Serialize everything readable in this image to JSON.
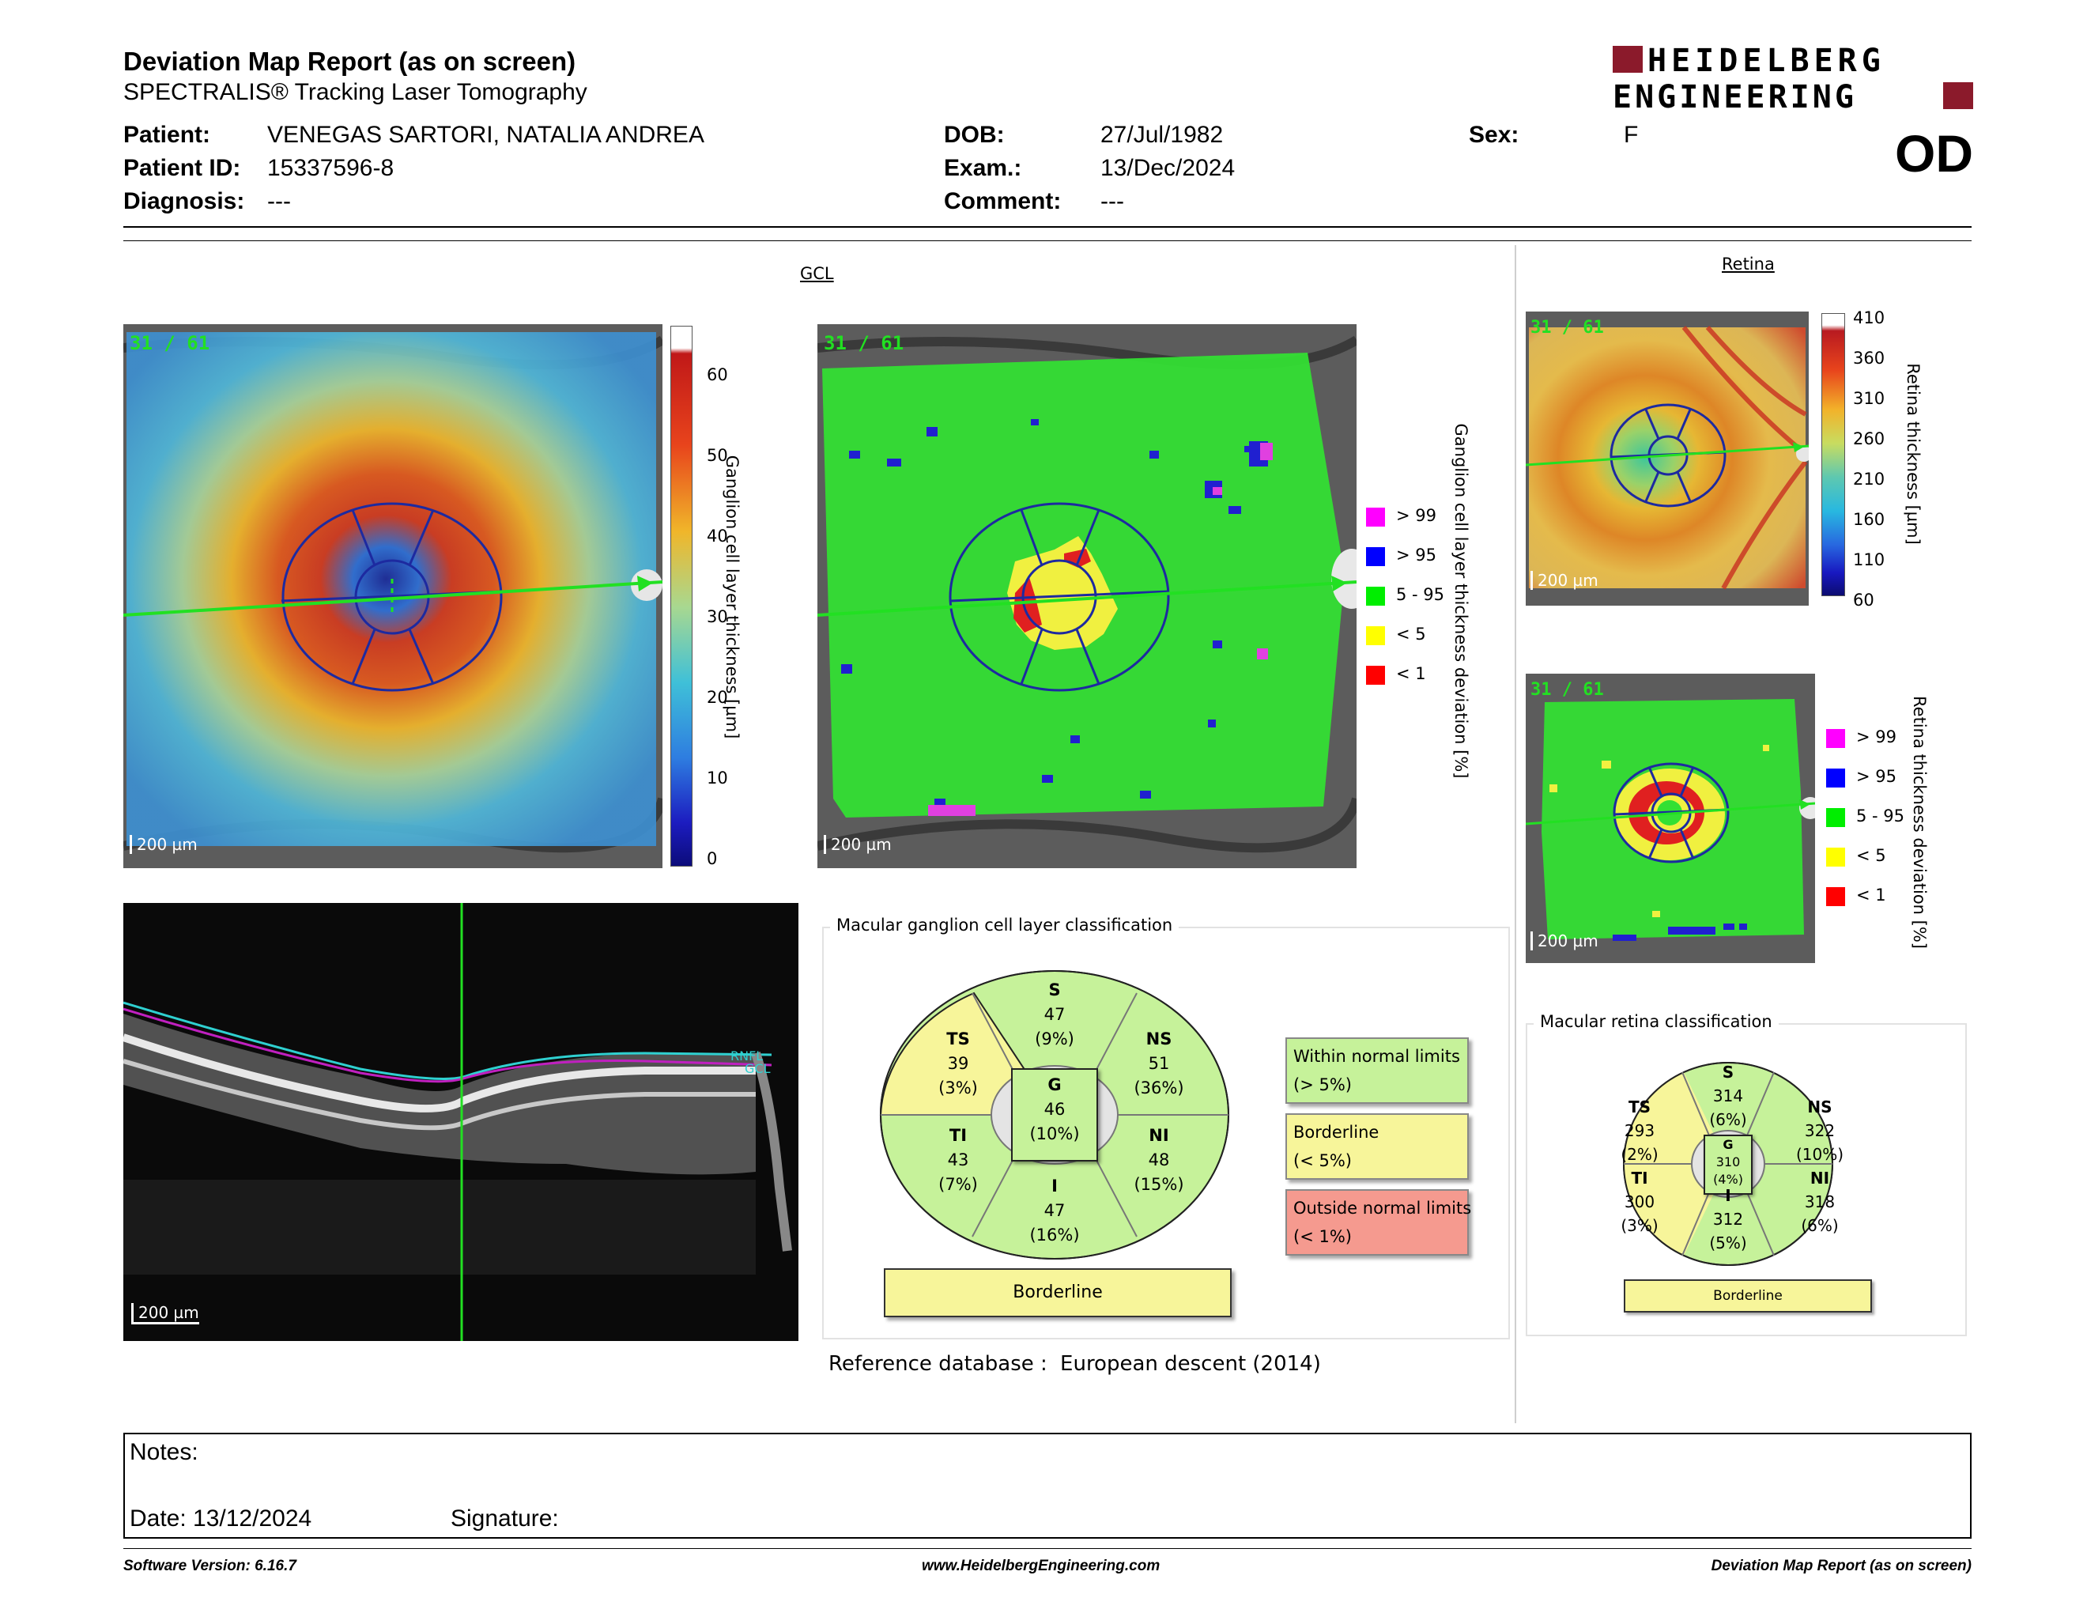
{
  "header": {
    "title": "Deviation Map Report (as on screen)",
    "subtitle": "SPECTRALIS® Tracking Laser Tomography",
    "brand": "HEIDELBERG ENGINEERING",
    "eye": "OD"
  },
  "patient": {
    "patient_label": "Patient:",
    "patient_value": "VENEGAS SARTORI, NATALIA ANDREA",
    "id_label": "Patient ID:",
    "id_value": "15337596-8",
    "diagnosis_label": "Diagnosis:",
    "diagnosis_value": "---",
    "dob_label": "DOB:",
    "dob_value": "27/Jul/1982",
    "exam_label": "Exam.:",
    "exam_value": "13/Dec/2024",
    "comment_label": "Comment:",
    "comment_value": "---",
    "sex_label": "Sex:",
    "sex_value": "F"
  },
  "gcl": {
    "title": "GCL",
    "frame_count": "31 / 61",
    "scale": "200 µm",
    "thickness_axis": "Ganglion cell layer thickness [µm]",
    "thickness_ticks": [
      "60",
      "50",
      "40",
      "30",
      "20",
      "10",
      "0"
    ],
    "deviation_axis": "Ganglion cell layer thickness deviation [%]",
    "deviation_legend": [
      "> 99",
      "> 95",
      "5 - 95",
      "< 5",
      "< 1"
    ]
  },
  "retina": {
    "title": "Retina",
    "frame_count": "31 / 61",
    "scale": "200 µm",
    "thickness_axis": "Retina thickness [µm]",
    "thickness_ticks": [
      "410",
      "360",
      "310",
      "260",
      "210",
      "160",
      "110",
      "60"
    ],
    "deviation_axis": "Retina thickness deviation [%]",
    "deviation_legend": [
      "> 99",
      "> 95",
      "5 - 95",
      "< 5",
      "< 1"
    ]
  },
  "bscan": {
    "scale": "200 µm",
    "layer_labels": [
      "RNFL",
      "GCL"
    ]
  },
  "legend_colors": {
    "gt99": "#ff00ff",
    "gt95": "#0000ff",
    "normal": "#00ee00",
    "lt5": "#ffff00",
    "lt1": "#ff0000",
    "within": "#c6f29a",
    "borderline": "#f7f59a",
    "outside": "#f59a8f"
  },
  "gcl_classification": {
    "title": "Macular ganglion cell layer classification",
    "S": {
      "label": "S",
      "value": "47",
      "pct": "(9%)"
    },
    "NS": {
      "label": "NS",
      "value": "51",
      "pct": "(36%)"
    },
    "NI": {
      "label": "NI",
      "value": "48",
      "pct": "(15%)"
    },
    "I": {
      "label": "I",
      "value": "47",
      "pct": "(16%)"
    },
    "TI": {
      "label": "TI",
      "value": "43",
      "pct": "(7%)"
    },
    "TS": {
      "label": "TS",
      "value": "39",
      "pct": "(3%)"
    },
    "G": {
      "label": "G",
      "value": "46",
      "pct": "(10%)"
    },
    "result": "Borderline"
  },
  "classification_legend": {
    "within_1": "Within normal limits",
    "within_2": "(> 5%)",
    "border_1": "Borderline",
    "border_2": "(< 5%)",
    "outside_1": "Outside normal limits",
    "outside_2": "(< 1%)"
  },
  "retina_classification": {
    "title": "Macular retina classification",
    "S": {
      "label": "S",
      "value": "314",
      "pct": "(6%)"
    },
    "NS": {
      "label": "NS",
      "value": "322",
      "pct": "(10%)"
    },
    "NI": {
      "label": "NI",
      "value": "318",
      "pct": "(6%)"
    },
    "I": {
      "label": "I",
      "value": "312",
      "pct": "(5%)"
    },
    "TI": {
      "label": "TI",
      "value": "300",
      "pct": "(3%)"
    },
    "TS": {
      "label": "TS",
      "value": "293",
      "pct": "(2%)"
    },
    "G": {
      "label": "G",
      "value": "310",
      "pct": "(4%)"
    },
    "result": "Borderline"
  },
  "reference": {
    "label": "Reference database :",
    "value": "European descent (2014)"
  },
  "notes": {
    "notes_label": "Notes:",
    "date_label": "Date: 13/12/2024",
    "signature_label": "Signature:"
  },
  "footer": {
    "software": "Software Version: 6.16.7",
    "website": "www.HeidelbergEngineering.com",
    "report": "Deviation Map Report (as on screen)"
  }
}
